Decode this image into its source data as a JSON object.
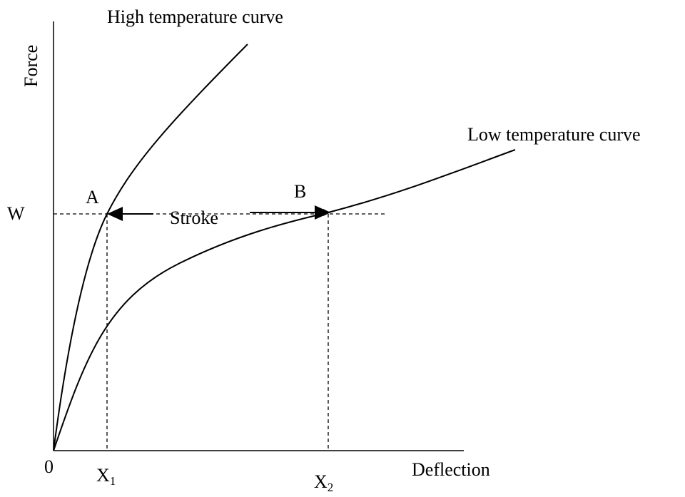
{
  "diagram": {
    "curves": {
      "high": "High temperature curve",
      "low": "Low temperature curve"
    },
    "axes": {
      "y": "Force",
      "x": "Deflection",
      "origin": "0"
    },
    "level": "W",
    "points": {
      "a": "A",
      "b": "B"
    },
    "stroke": "Stroke",
    "x_labels": [
      {
        "main": "X",
        "sub": "1"
      },
      {
        "main": "X",
        "sub": "2"
      }
    ]
  }
}
